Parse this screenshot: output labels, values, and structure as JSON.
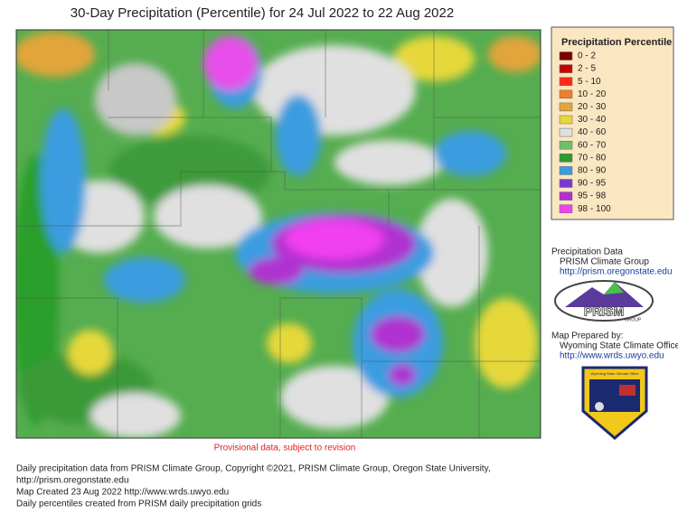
{
  "title": "30-Day Precipitation (Percentile) for 24 Jul 2022 to 22 Aug 2022",
  "notice": "Provisional data, subject to revision",
  "legend": {
    "title": "Precipitation Percentile",
    "items": [
      {
        "label": "0 - 2",
        "color": "#7b0000"
      },
      {
        "label": "2 - 5",
        "color": "#c80000"
      },
      {
        "label": "5 - 10",
        "color": "#ff2a1a"
      },
      {
        "label": "10 - 20",
        "color": "#f07d2a"
      },
      {
        "label": "20 - 30",
        "color": "#e2a53b"
      },
      {
        "label": "30 - 40",
        "color": "#e6d83a"
      },
      {
        "label": "40 - 60",
        "color": "#e0e0e0"
      },
      {
        "label": "60 - 70",
        "color": "#6cc16a"
      },
      {
        "label": "70 - 80",
        "color": "#2a9e2a"
      },
      {
        "label": "80 - 90",
        "color": "#3a9de0"
      },
      {
        "label": "90 - 95",
        "color": "#7a3ad0"
      },
      {
        "label": "95 - 98",
        "color": "#b030d0"
      },
      {
        "label": "98 - 100",
        "color": "#f040f0"
      }
    ]
  },
  "credits": {
    "data_heading": "Precipitation Data",
    "data_source": "PRISM Climate Group",
    "data_url": "http://prism.oregonstate.edu",
    "logo_text": "PRISM",
    "logo_sub": "GROUP",
    "prepared_heading": "Map Prepared by:",
    "prepared_by": "Wyoming State Climate Office",
    "prepared_url": "http://www.wrds.uwyo.edu",
    "seal_text": "Wyoming State Climate Office"
  },
  "footer": [
    "Daily precipitation data from PRISM Climate Group, Copyright ©2021, PRISM Climate Group, Oregon State University,",
    "http://prism.oregonstate.edu",
    "Map Created 23 Aug 2022 http://www.wrds.uwyo.edu",
    "Daily percentiles created from PRISM daily precipitation grids"
  ]
}
